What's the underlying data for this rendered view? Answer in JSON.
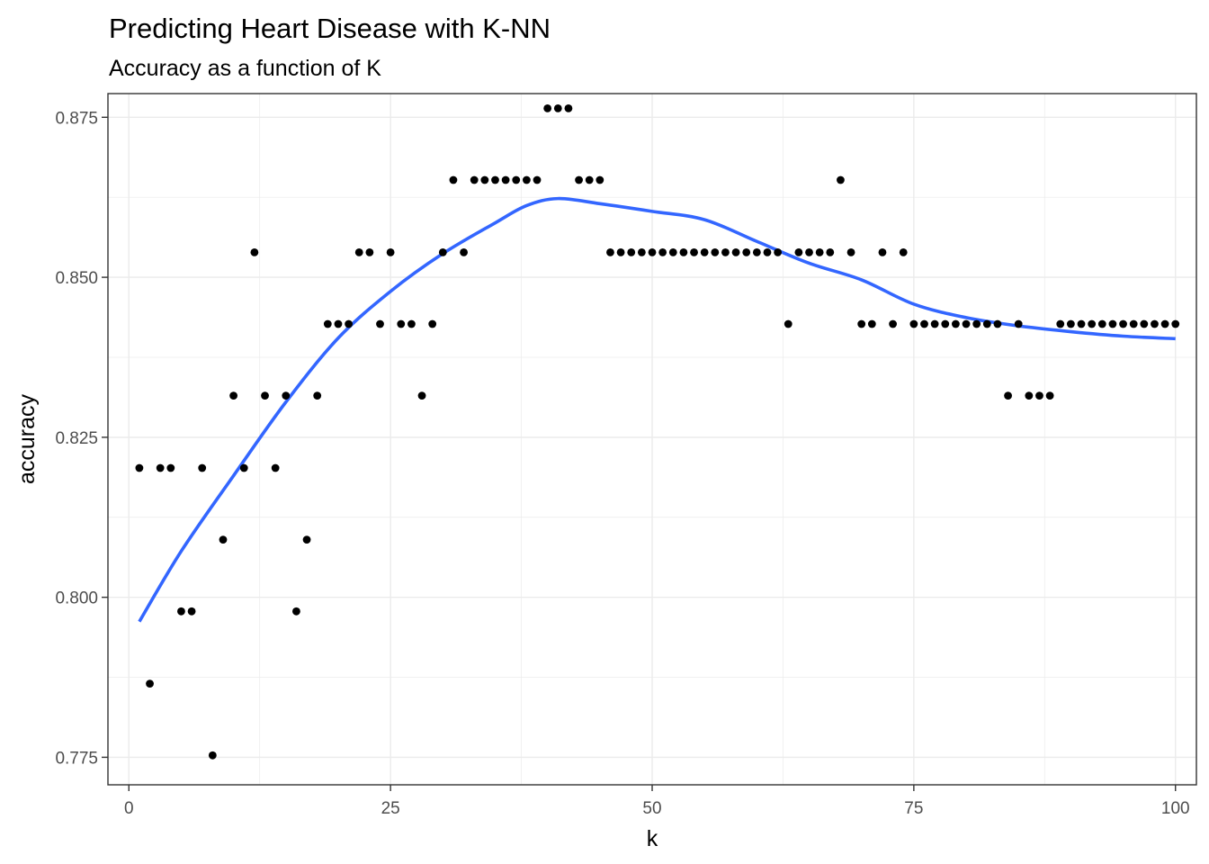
{
  "chart_data": {
    "type": "scatter",
    "title": "Predicting Heart Disease with K-NN",
    "subtitle": "Accuracy as a function of K",
    "xlabel": "k",
    "ylabel": "accuracy",
    "xlim": [
      -2,
      102
    ],
    "ylim": [
      0.7707,
      0.8787
    ],
    "x_ticks": [
      0,
      25,
      50,
      75,
      100
    ],
    "x_tick_labels": [
      "0",
      "25",
      "50",
      "75",
      "100"
    ],
    "y_ticks": [
      0.775,
      0.8,
      0.825,
      0.85,
      0.875
    ],
    "y_tick_labels": [
      "0.775",
      "0.800",
      "0.825",
      "0.850",
      "0.875"
    ],
    "grid": true,
    "legend": "none",
    "point_color": "#000000",
    "smooth_color": "#3366ff",
    "series": [
      {
        "type": "scatter",
        "x": [
          1,
          2,
          3,
          4,
          5,
          6,
          7,
          8,
          9,
          10,
          11,
          12,
          13,
          14,
          15,
          16,
          17,
          18,
          19,
          20,
          21,
          22,
          23,
          24,
          25,
          26,
          27,
          28,
          29,
          30,
          31,
          32,
          33,
          34,
          35,
          36,
          37,
          38,
          39,
          40,
          41,
          42,
          43,
          44,
          45,
          46,
          47,
          48,
          49,
          50,
          51,
          52,
          53,
          54,
          55,
          56,
          57,
          58,
          59,
          60,
          61,
          62,
          63,
          64,
          65,
          66,
          67,
          68,
          69,
          70,
          71,
          72,
          73,
          74,
          75,
          76,
          77,
          78,
          79,
          80,
          81,
          82,
          83,
          84,
          85,
          86,
          87,
          88,
          89,
          90,
          91,
          92,
          93,
          94,
          95,
          96,
          97,
          98,
          99,
          100
        ],
        "y": [
          0.8202,
          0.7865,
          0.8202,
          0.8202,
          0.7978,
          0.7978,
          0.8202,
          0.7753,
          0.809,
          0.8315,
          0.8202,
          0.8539,
          0.8315,
          0.8202,
          0.8315,
          0.7978,
          0.809,
          0.8315,
          0.8427,
          0.8427,
          0.8427,
          0.8539,
          0.8539,
          0.8427,
          0.8539,
          0.8427,
          0.8427,
          0.8315,
          0.8427,
          0.8539,
          0.8652,
          0.8539,
          0.8652,
          0.8652,
          0.8652,
          0.8652,
          0.8652,
          0.8652,
          0.8652,
          0.8764,
          0.8764,
          0.8764,
          0.8652,
          0.8652,
          0.8652,
          0.8539,
          0.8539,
          0.8539,
          0.8539,
          0.8539,
          0.8539,
          0.8539,
          0.8539,
          0.8539,
          0.8539,
          0.8539,
          0.8539,
          0.8539,
          0.8539,
          0.8539,
          0.8539,
          0.8539,
          0.8427,
          0.8539,
          0.8539,
          0.8539,
          0.8539,
          0.8652,
          0.8539,
          0.8427,
          0.8427,
          0.8539,
          0.8427,
          0.8539,
          0.8427,
          0.8427,
          0.8427,
          0.8427,
          0.8427,
          0.8427,
          0.8427,
          0.8427,
          0.8427,
          0.8315,
          0.8427,
          0.8315,
          0.8315,
          0.8315,
          0.8427,
          0.8427,
          0.8427,
          0.8427,
          0.8427,
          0.8427,
          0.8427,
          0.8427,
          0.8427,
          0.8427,
          0.8427,
          0.8427
        ]
      },
      {
        "type": "line",
        "x": [
          1,
          5,
          10,
          15,
          20,
          25,
          30,
          35,
          38,
          41,
          45,
          50,
          55,
          60,
          65,
          70,
          75,
          80,
          85,
          90,
          95,
          100
        ],
        "y": [
          0.7962,
          0.8072,
          0.819,
          0.8305,
          0.8405,
          0.8478,
          0.8537,
          0.8585,
          0.8612,
          0.8623,
          0.8615,
          0.8603,
          0.859,
          0.8556,
          0.8522,
          0.8496,
          0.8458,
          0.8437,
          0.8424,
          0.8415,
          0.8408,
          0.8404
        ]
      }
    ]
  }
}
